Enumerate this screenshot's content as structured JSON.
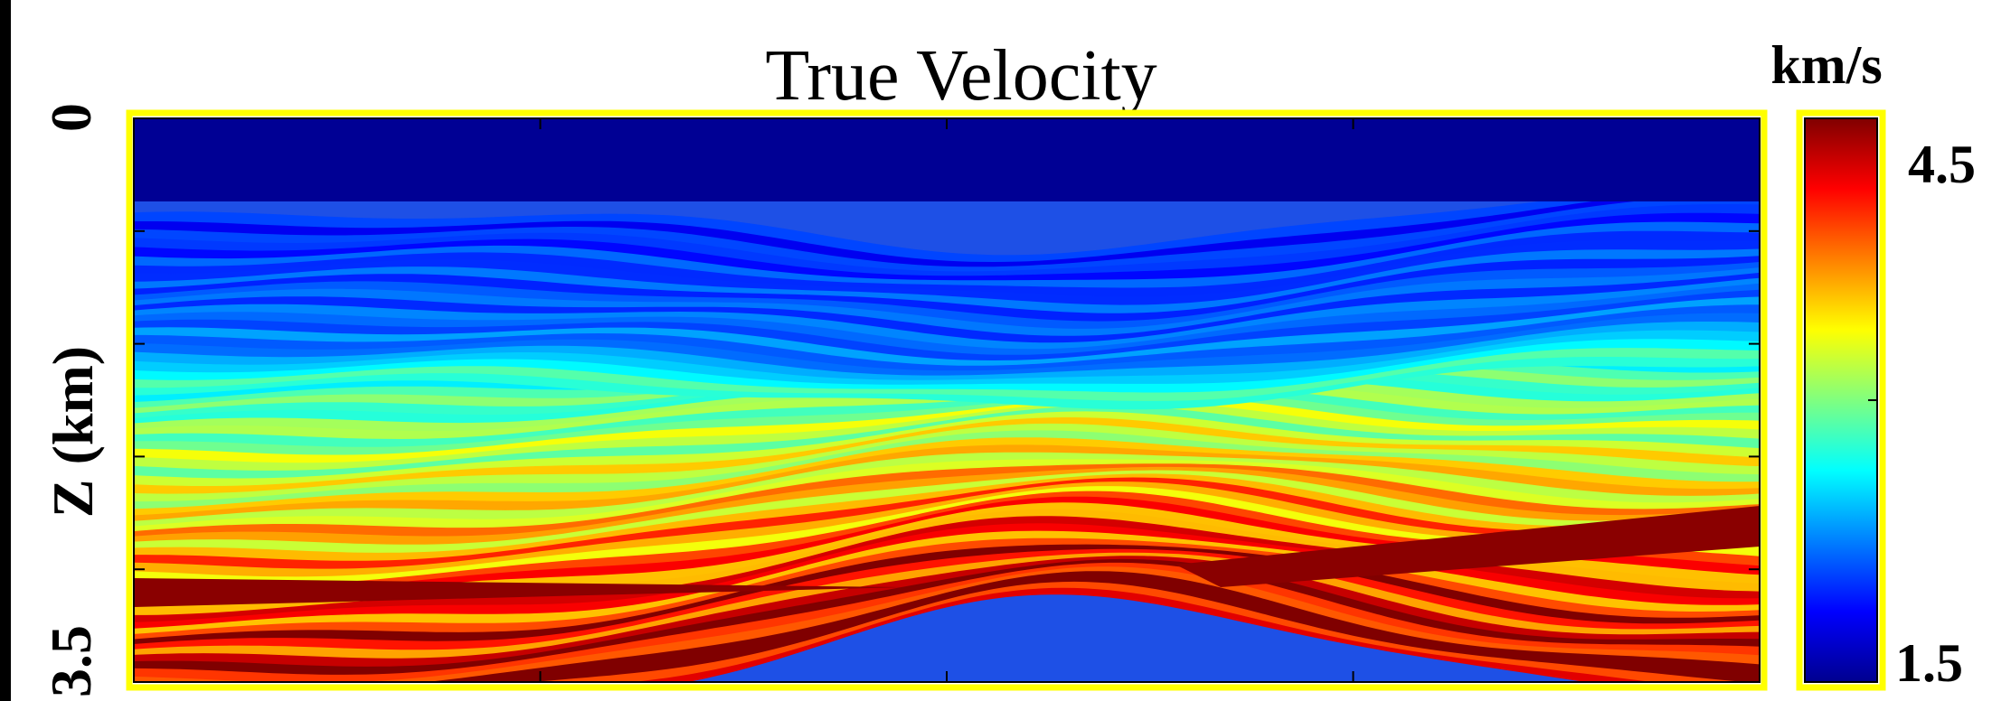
{
  "chart_data": {
    "type": "heatmap",
    "title": "True Velocity",
    "ylabel": "Z (km)",
    "ylim": [
      0,
      3.5
    ],
    "y_tick_labels": [
      "0",
      "3.5"
    ],
    "colorbar": {
      "unit_label": "km/s",
      "range": [
        1.5,
        4.5
      ],
      "tick_labels": [
        "1.5",
        "4.5"
      ],
      "colormap": "jet"
    },
    "highlight_border": "#ffff00"
  }
}
